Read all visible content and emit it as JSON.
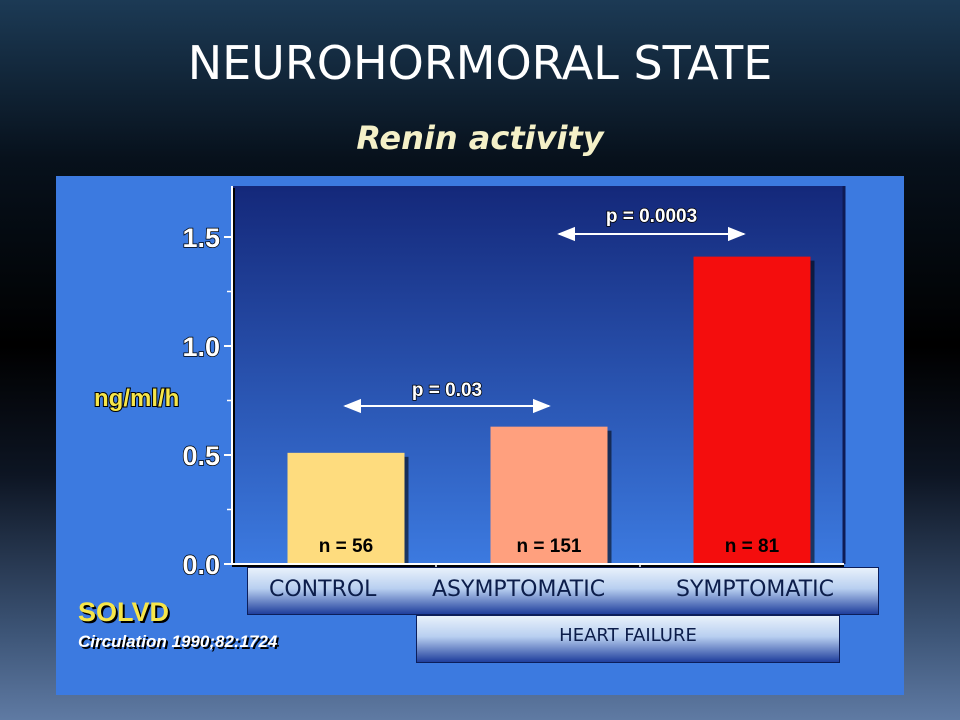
{
  "slide": {
    "title": "NEUROHORMORAL STATE",
    "subtitle": "Renin activity"
  },
  "chart_data": {
    "type": "bar",
    "ylabel": "ng/ml/h",
    "ylim": [
      0,
      1.65
    ],
    "yticks": [
      "0.0",
      "0.5",
      "1.0",
      "1.5"
    ],
    "ytick_values": [
      0,
      0.5,
      1.0,
      1.5
    ],
    "categories": [
      "CONTROL",
      "ASYMPTOMATIC",
      "SYMPTOMATIC"
    ],
    "values": [
      0.51,
      0.63,
      1.41
    ],
    "bar_colors": [
      "#fedc7e",
      "#ffa07e",
      "#f40d0d"
    ],
    "data_labels": [
      "n = 56",
      "n = 151",
      "n = 81"
    ],
    "annotations": [
      {
        "text": "p = 0.03",
        "from": 0,
        "to": 1
      },
      {
        "text": "p = 0.0003",
        "from": 1,
        "to": 2
      }
    ],
    "group_label": "HEART FAILURE",
    "grid": false
  },
  "source": {
    "study": "SOLVD",
    "citation": "Circulation 1990;82:1724"
  },
  "colors": {
    "panel": "#3c7ae0",
    "plot_top": "#14287a",
    "plot_bottom": "#3c7ae0",
    "axis_text": "#ffffff",
    "ylabel_color": "#f6e64a"
  }
}
